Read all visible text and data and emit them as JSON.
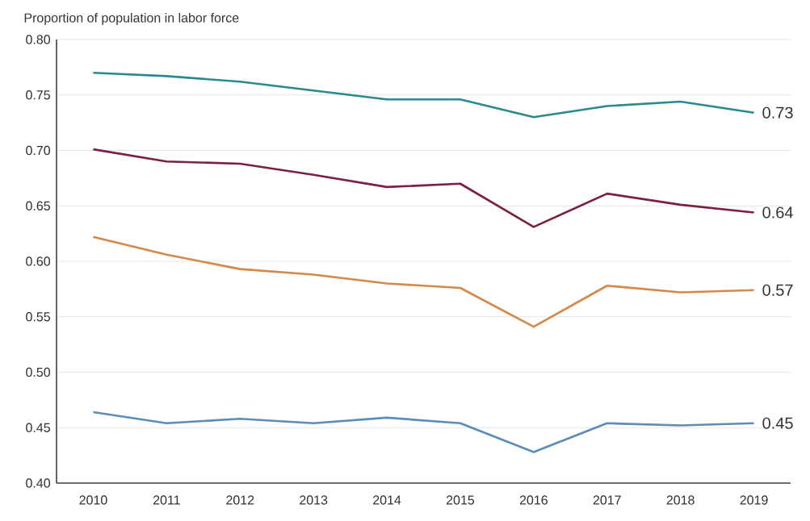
{
  "chart_data": {
    "type": "line",
    "ylabel": "Proportion of population in labor force",
    "categories": [
      "2010",
      "2011",
      "2012",
      "2013",
      "2014",
      "2015",
      "2016",
      "2017",
      "2018",
      "2019"
    ],
    "series": [
      {
        "color": "#2a8a8c",
        "values": [
          0.77,
          0.767,
          0.762,
          0.754,
          0.746,
          0.746,
          0.73,
          0.74,
          0.744,
          0.734
        ],
        "value_labels": [
          null,
          null,
          null,
          null,
          null,
          null,
          null,
          null,
          null,
          "0.73"
        ]
      },
      {
        "color": "#7a1f45",
        "values": [
          0.701,
          0.69,
          0.688,
          0.678,
          0.667,
          0.67,
          0.631,
          0.661,
          0.651,
          0.644
        ],
        "value_labels": [
          null,
          null,
          null,
          null,
          null,
          null,
          null,
          null,
          null,
          "0.64"
        ]
      },
      {
        "color": "#d4894a",
        "values": [
          0.622,
          0.606,
          0.593,
          0.588,
          0.58,
          0.576,
          0.541,
          0.578,
          0.572,
          0.574
        ],
        "value_labels": [
          null,
          null,
          null,
          null,
          null,
          null,
          null,
          null,
          null,
          "0.57"
        ]
      },
      {
        "color": "#5b8db8",
        "values": [
          0.464,
          0.454,
          0.458,
          0.454,
          0.459,
          0.454,
          0.428,
          0.454,
          0.452,
          0.454
        ],
        "value_labels": [
          null,
          null,
          null,
          null,
          null,
          null,
          null,
          null,
          null,
          "0.45"
        ]
      }
    ],
    "ylim": [
      0.4,
      0.8
    ],
    "yticks": [
      {
        "value": 0.4,
        "label": "0.40"
      },
      {
        "value": 0.45,
        "label": "0.45"
      },
      {
        "value": 0.5,
        "label": "0.50"
      },
      {
        "value": 0.55,
        "label": "0.55"
      },
      {
        "value": 0.6,
        "label": "0.60"
      },
      {
        "value": 0.65,
        "label": "0.65"
      },
      {
        "value": 0.7,
        "label": "0.70"
      },
      {
        "value": 0.75,
        "label": "0.75"
      },
      {
        "value": 0.8,
        "label": "0.80"
      }
    ],
    "grid": "y",
    "marker": "none",
    "line_style": "solid"
  }
}
